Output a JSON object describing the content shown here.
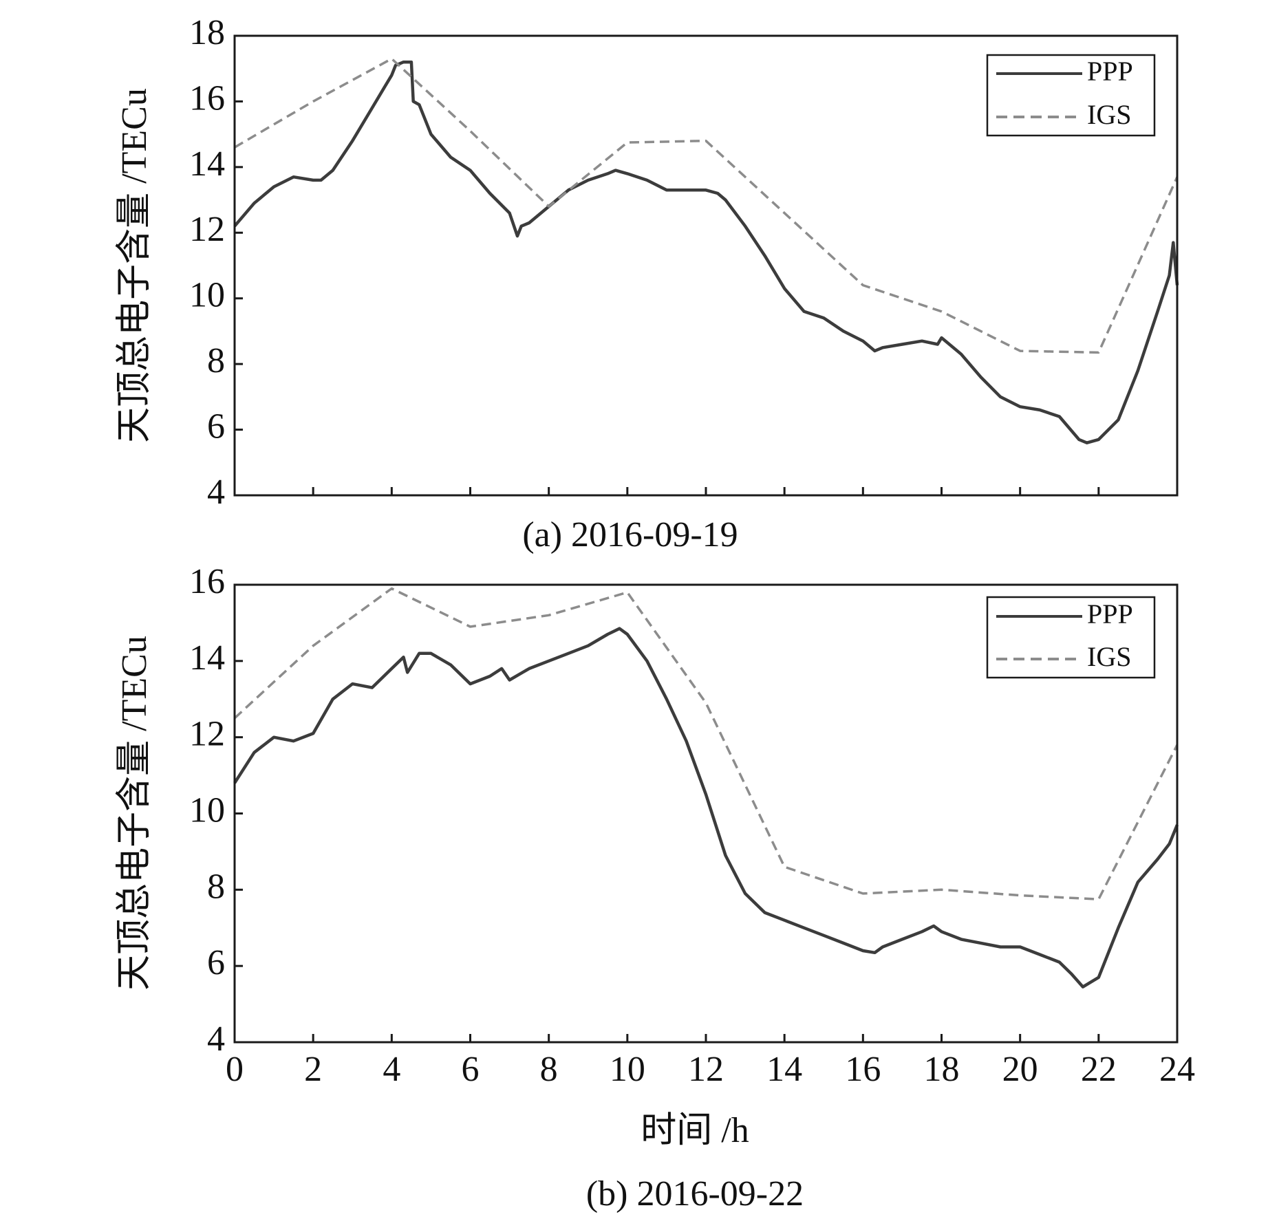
{
  "figure": {
    "xlabel": "时间 /h",
    "ylabel": "天顶总电子含量 /TECu",
    "colors": {
      "PPP": "#3c3c3c",
      "IGS": "#8c8c8c"
    }
  },
  "chart_data": [
    {
      "type": "line",
      "panel": "a",
      "caption": "(a) 2016-09-19",
      "ylabel": "天顶总电子含量 /TECu",
      "xlim": [
        0,
        24
      ],
      "ylim": [
        4,
        18
      ],
      "yticks": [
        4,
        6,
        8,
        10,
        12,
        14,
        16,
        18
      ],
      "xticks": [
        0,
        2,
        4,
        6,
        8,
        10,
        12,
        14,
        16,
        18,
        20,
        22,
        24
      ],
      "show_xtick_labels": false,
      "grid": false,
      "legend": "top-right",
      "series": [
        {
          "name": "PPP",
          "style": "solid",
          "x": [
            0,
            0.5,
            1.0,
            1.5,
            2.0,
            2.2,
            2.5,
            3.0,
            3.5,
            3.8,
            4.0,
            4.1,
            4.3,
            4.5,
            4.55,
            4.7,
            5.0,
            5.5,
            6.0,
            6.5,
            7.0,
            7.2,
            7.3,
            7.5,
            8.0,
            8.5,
            9.0,
            9.5,
            9.7,
            10.0,
            10.5,
            11.0,
            11.5,
            12.0,
            12.3,
            12.5,
            13.0,
            13.5,
            14.0,
            14.5,
            15.0,
            15.5,
            16.0,
            16.3,
            16.5,
            17.0,
            17.5,
            17.9,
            18.0,
            18.5,
            19.0,
            19.5,
            20.0,
            20.5,
            21.0,
            21.5,
            21.7,
            22.0,
            22.5,
            23.0,
            23.5,
            23.8,
            23.9,
            24.0
          ],
          "y": [
            12.2,
            12.9,
            13.4,
            13.7,
            13.6,
            13.6,
            13.9,
            14.8,
            15.8,
            16.4,
            16.8,
            17.1,
            17.2,
            17.2,
            16.0,
            15.9,
            15.0,
            14.3,
            13.9,
            13.2,
            12.6,
            11.9,
            12.2,
            12.3,
            12.8,
            13.3,
            13.6,
            13.8,
            13.9,
            13.8,
            13.6,
            13.3,
            13.3,
            13.3,
            13.2,
            13.0,
            12.2,
            11.3,
            10.3,
            9.6,
            9.4,
            9.0,
            8.7,
            8.4,
            8.5,
            8.6,
            8.7,
            8.6,
            8.8,
            8.3,
            7.6,
            7.0,
            6.7,
            6.6,
            6.4,
            5.7,
            5.6,
            5.7,
            6.3,
            7.8,
            9.6,
            10.7,
            11.7,
            10.4
          ]
        },
        {
          "name": "IGS",
          "style": "dashed",
          "x": [
            0,
            2,
            4,
            6,
            8,
            10,
            12,
            14,
            16,
            18,
            20,
            22,
            24
          ],
          "y": [
            14.6,
            16.0,
            17.3,
            15.1,
            12.8,
            14.75,
            14.8,
            12.6,
            10.4,
            9.6,
            8.4,
            8.35,
            13.7
          ]
        }
      ]
    },
    {
      "type": "line",
      "panel": "b",
      "caption": "(b) 2016-09-22",
      "xlabel": "时间 /h",
      "ylabel": "天顶总电子含量 /TECu",
      "xlim": [
        0,
        24
      ],
      "ylim": [
        4,
        16
      ],
      "yticks": [
        4,
        6,
        8,
        10,
        12,
        14,
        16
      ],
      "xticks": [
        0,
        2,
        4,
        6,
        8,
        10,
        12,
        14,
        16,
        18,
        20,
        22,
        24
      ],
      "show_xtick_labels": true,
      "grid": false,
      "legend": "top-right",
      "series": [
        {
          "name": "PPP",
          "style": "solid",
          "x": [
            0,
            0.5,
            1.0,
            1.5,
            2.0,
            2.5,
            3.0,
            3.5,
            4.0,
            4.3,
            4.4,
            4.7,
            5.0,
            5.5,
            6.0,
            6.5,
            6.8,
            7.0,
            7.5,
            8.0,
            8.5,
            9.0,
            9.5,
            9.8,
            10.0,
            10.5,
            11.0,
            11.5,
            12.0,
            12.5,
            13.0,
            13.5,
            14.0,
            14.5,
            15.0,
            15.5,
            16.0,
            16.3,
            16.5,
            17.0,
            17.5,
            17.8,
            18.0,
            18.5,
            19.0,
            19.5,
            20.0,
            20.5,
            21.0,
            21.3,
            21.6,
            22.0,
            22.5,
            23.0,
            23.5,
            23.8,
            24.0
          ],
          "y": [
            10.8,
            11.6,
            12.0,
            11.9,
            12.1,
            13.0,
            13.4,
            13.3,
            13.8,
            14.1,
            13.7,
            14.2,
            14.2,
            13.9,
            13.4,
            13.6,
            13.8,
            13.5,
            13.8,
            14.0,
            14.2,
            14.4,
            14.7,
            14.85,
            14.7,
            14.0,
            13.0,
            11.9,
            10.5,
            8.9,
            7.9,
            7.4,
            7.2,
            7.0,
            6.8,
            6.6,
            6.4,
            6.35,
            6.5,
            6.7,
            6.9,
            7.05,
            6.9,
            6.7,
            6.6,
            6.5,
            6.5,
            6.3,
            6.1,
            5.8,
            5.45,
            5.7,
            7.0,
            8.2,
            8.8,
            9.2,
            9.7
          ]
        },
        {
          "name": "IGS",
          "style": "dashed",
          "x": [
            0,
            2,
            4,
            6,
            8,
            10,
            12,
            14,
            16,
            18,
            20,
            22,
            24
          ],
          "y": [
            12.5,
            14.4,
            15.9,
            14.9,
            15.2,
            15.8,
            12.9,
            8.6,
            7.9,
            8.0,
            7.85,
            7.75,
            11.8
          ]
        }
      ]
    }
  ]
}
